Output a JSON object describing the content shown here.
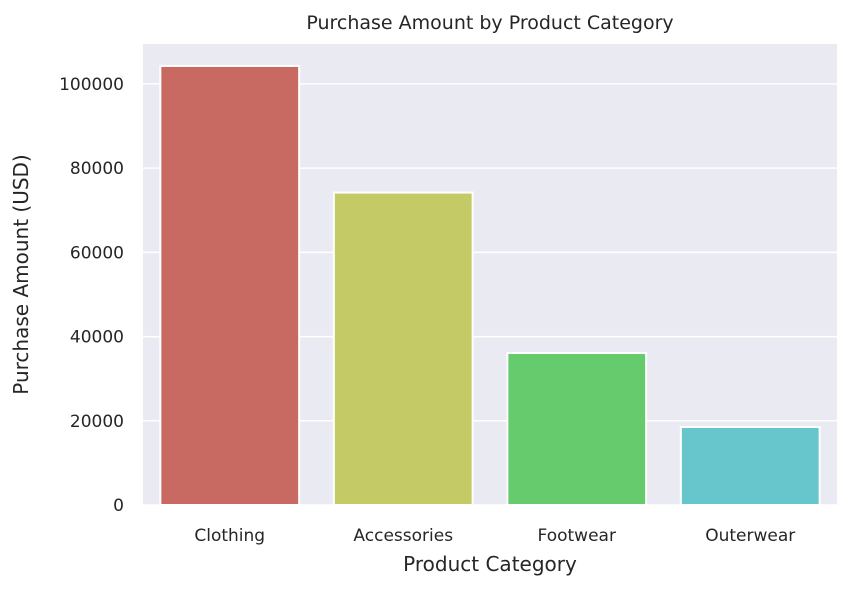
{
  "chart_data": {
    "type": "bar",
    "title": "Purchase Amount by Product Category",
    "xlabel": "Product Category",
    "ylabel": "Purchase Amount (USD)",
    "categories": [
      "Clothing",
      "Accessories",
      "Footwear",
      "Outerwear"
    ],
    "values": [
      104264,
      74200,
      36093,
      18524
    ],
    "colors": [
      "#c86a62",
      "#c4cb66",
      "#66cb6d",
      "#67c5cc"
    ],
    "ylim": [
      0,
      109477
    ],
    "yticks": [
      0,
      20000,
      40000,
      60000,
      80000,
      100000
    ],
    "ytick_labels": [
      "0",
      "20000",
      "40000",
      "60000",
      "80000",
      "100000"
    ],
    "grid": true,
    "background": "#eaeaf2"
  }
}
